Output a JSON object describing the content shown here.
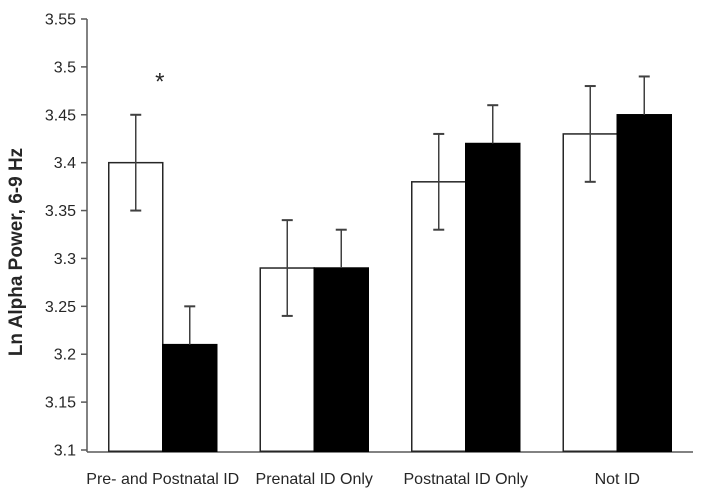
{
  "chart_data": {
    "type": "bar",
    "title": "",
    "xlabel": "",
    "ylabel": "Ln Alpha Power, 6-9 Hz",
    "ylim": [
      3.1,
      3.55
    ],
    "ytick_step": 0.05,
    "ytick_labels": [
      "3.1",
      "3.15",
      "3.2",
      "3.25",
      "3.3",
      "3.35",
      "3.4",
      "3.45",
      "3.5",
      "3.55"
    ],
    "grid": false,
    "legend": "none",
    "categories": [
      "Pre- and Postnatal ID",
      "Prenatal ID Only",
      "Postnatal ID Only",
      "Not ID"
    ],
    "series": [
      {
        "name": "white-bars",
        "fill": "#ffffff",
        "outline": "#262626",
        "values": [
          3.4,
          3.29,
          3.38,
          3.43
        ],
        "error": [
          0.05,
          0.05,
          0.05,
          0.05
        ],
        "error_caps": "both"
      },
      {
        "name": "black-bars",
        "fill": "#000000",
        "outline": "#000000",
        "values": [
          3.21,
          3.29,
          3.42,
          3.45
        ],
        "error": [
          0.04,
          0.04,
          0.04,
          0.04
        ],
        "error_caps": "upper"
      }
    ],
    "annotations": [
      {
        "text": "*",
        "category_index": 0,
        "y": 3.49
      }
    ]
  },
  "colors": {
    "background": "#ffffff",
    "axis": "#595959",
    "text": "#262626",
    "error_bar": "#404040",
    "bar_outline": "#262626",
    "bar_black": "#000000",
    "bar_white": "#ffffff"
  }
}
